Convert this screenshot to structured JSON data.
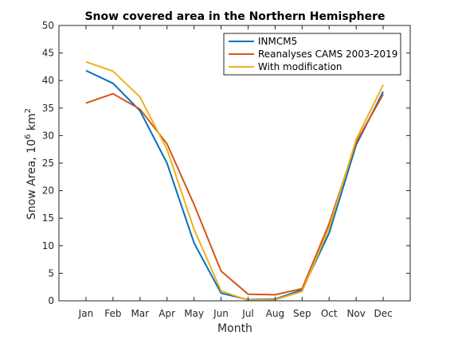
{
  "chart_data": {
    "type": "line",
    "title": "Snow covered area in the Northern Hemisphere",
    "xlabel": "Month",
    "ylabel_main": "Snow Area, 10",
    "ylabel_sup": "6",
    "ylabel_unit": " km",
    "ylabel_sup2": "2",
    "categories": [
      "Jan",
      "Feb",
      "Mar",
      "Apr",
      "May",
      "Jun",
      "Jul",
      "Aug",
      "Sep",
      "Oct",
      "Nov",
      "Dec"
    ],
    "ylim": [
      0,
      50
    ],
    "yticks": [
      "0",
      "5",
      "10",
      "15",
      "20",
      "25",
      "30",
      "35",
      "40",
      "45",
      "50"
    ],
    "legend_position": "top-right",
    "series": [
      {
        "name": "INMCM5",
        "color": "#0072BD",
        "values": [
          41.8,
          39.5,
          34.5,
          25.0,
          10.5,
          1.4,
          0.2,
          0.3,
          2.0,
          12.3,
          28.3,
          38.0
        ]
      },
      {
        "name": "Reanalyses CAMS 2003-2019",
        "color": "#D95319",
        "values": [
          35.9,
          37.6,
          34.8,
          28.5,
          17.5,
          5.4,
          1.2,
          1.1,
          2.2,
          14.0,
          28.8,
          37.5
        ]
      },
      {
        "name": "With modification",
        "color": "#EDB120",
        "values": [
          43.4,
          41.7,
          37.0,
          27.5,
          13.0,
          1.8,
          0.1,
          0.2,
          1.7,
          13.2,
          29.3,
          39.2
        ]
      }
    ]
  }
}
